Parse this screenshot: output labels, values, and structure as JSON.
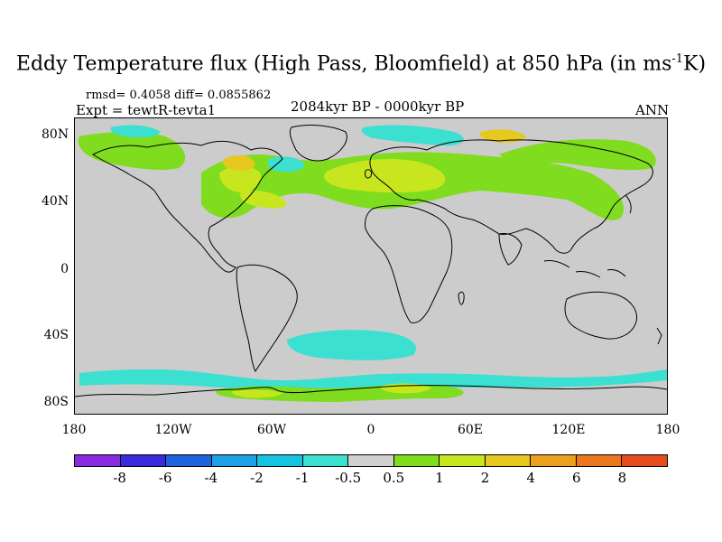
{
  "title": {
    "main": "Eddy Temperature flux (High Pass, Bloomfield) at 850 hPa (in ms",
    "sup": "-1",
    "tail": "K)"
  },
  "stats_text": "rmsd= 0.4058 diff= 0.0855862",
  "expt_text": "Expt = tewtR-tevta1",
  "period_text": "2084kyr BP - 0000kyr BP",
  "season_text": "ANN",
  "lat_labels": [
    "80N",
    "40N",
    "0",
    "40S",
    "80S"
  ],
  "lon_labels": [
    "180",
    "120W",
    "60W",
    "0",
    "60E",
    "120E",
    "180"
  ],
  "colorbar": {
    "colors": [
      "#8a2be2",
      "#3a2bdb",
      "#1e64dc",
      "#1ea0e6",
      "#16c3e1",
      "#3be0d0",
      "#d0d0d0",
      "#7fdc1e",
      "#c8e61e",
      "#e6c81e",
      "#eba01e",
      "#eb781e",
      "#e64b1e"
    ],
    "labels": [
      "-8",
      "-6",
      "-4",
      "-2",
      "-1",
      "-0.5",
      "0.5",
      "1",
      "2",
      "4",
      "6",
      "8"
    ]
  },
  "map_colors": {
    "land_ocean": "#cccccc",
    "green": "#7fdc1e",
    "yellow": "#c8e61e",
    "orange": "#e6c81e",
    "cyan": "#3be0d0",
    "blue": "#16c3e1"
  }
}
